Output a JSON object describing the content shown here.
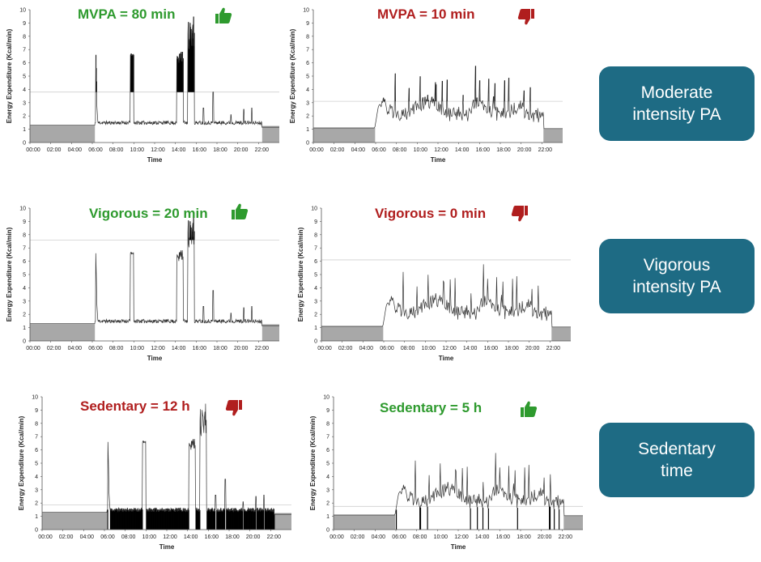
{
  "colors": {
    "green": "#2e9a2e",
    "red": "#b01e1e",
    "box": "#1e6b84",
    "sedentary_fill": "#a8a8a8",
    "highlight": "#000000",
    "line": "#333333",
    "threshold": "#cfcfcf"
  },
  "side_boxes": [
    {
      "line1": "Moderate",
      "line2": "intensity PA"
    },
    {
      "line1": "Vigorous",
      "line2": "intensity PA"
    },
    {
      "line1": "Sedentary",
      "line2": "time"
    }
  ],
  "chart_data": [
    {
      "type": "line",
      "profile": "active",
      "title": "MVPA = 80 min",
      "title_color": "green",
      "icon": "thumbs-up-icon",
      "highlight": "above",
      "threshold": 3.8,
      "xlabel": "Time",
      "ylabel": "Energy Expenditure (Kcal/min)",
      "ylim": [
        0,
        10
      ],
      "yticks": [
        "0",
        "1",
        "2",
        "3",
        "4",
        "5",
        "6",
        "7",
        "8",
        "9",
        "10"
      ],
      "xticks": [
        "00:00",
        "02:00",
        "04:00",
        "06:00",
        "08:00",
        "10:00",
        "12:00",
        "14:00",
        "16:00",
        "18:00",
        "20:00",
        "22:00"
      ]
    },
    {
      "type": "line",
      "profile": "low",
      "title": "MVPA = 10 min",
      "title_color": "red",
      "icon": "thumbs-down-icon",
      "highlight": "above",
      "threshold": 3.1,
      "xlabel": "Time",
      "ylabel": "Energy Expenditure (Kcal/min)",
      "ylim": [
        0,
        10
      ],
      "yticks": [
        "0",
        "1",
        "2",
        "3",
        "4",
        "5",
        "6",
        "7",
        "8",
        "9",
        "10"
      ],
      "xticks": [
        "00:00",
        "02:00",
        "04:00",
        "06:00",
        "08:00",
        "10:00",
        "12:00",
        "14:00",
        "16:00",
        "18:00",
        "20:00",
        "22:00"
      ]
    },
    {
      "type": "line",
      "profile": "active",
      "title": "Vigorous = 20  min",
      "title_color": "green",
      "icon": "thumbs-up-icon",
      "highlight": "above",
      "threshold": 7.6,
      "xlabel": "Time",
      "ylabel": "Energy Expenditure (Kcal/min)",
      "ylim": [
        0,
        10
      ],
      "yticks": [
        "0",
        "1",
        "2",
        "3",
        "4",
        "5",
        "6",
        "7",
        "8",
        "9",
        "10"
      ],
      "xticks": [
        "00:00",
        "02:00",
        "04:00",
        "06:00",
        "08:00",
        "10:00",
        "12:00",
        "14:00",
        "16:00",
        "18:00",
        "20:00",
        "22:00"
      ]
    },
    {
      "type": "line",
      "profile": "low",
      "title": "Vigorous = 0 min",
      "title_color": "red",
      "icon": "thumbs-down-icon",
      "highlight": "above",
      "threshold": 6.1,
      "xlabel": "Time",
      "ylabel": "Energy Expenditure (Kcal/min)",
      "ylim": [
        0,
        10
      ],
      "yticks": [
        "0",
        "1",
        "2",
        "3",
        "4",
        "5",
        "6",
        "7",
        "8",
        "9",
        "10"
      ],
      "xticks": [
        "00:00",
        "02:00",
        "04:00",
        "06:00",
        "08:00",
        "10:00",
        "12:00",
        "14:00",
        "16:00",
        "18:00",
        "20:00",
        "22:00"
      ]
    },
    {
      "type": "line",
      "profile": "active",
      "title": "Sedentary = 12 h",
      "title_color": "red",
      "icon": "thumbs-down-icon",
      "highlight": "below",
      "threshold": 1.85,
      "xlabel": "Time",
      "ylabel": "Energy Expenditure (Kcal/min)",
      "ylim": [
        0,
        10
      ],
      "yticks": [
        "0",
        "1",
        "2",
        "3",
        "4",
        "5",
        "6",
        "7",
        "8",
        "9",
        "10"
      ],
      "xticks": [
        "00:00",
        "02:00",
        "04:00",
        "06:00",
        "08:00",
        "10:00",
        "12:00",
        "14:00",
        "16:00",
        "18:00",
        "20:00",
        "22:00"
      ]
    },
    {
      "type": "line",
      "profile": "low",
      "title": "Sedentary = 5 h",
      "title_color": "green",
      "icon": "thumbs-up-icon",
      "highlight": "below",
      "threshold": 1.75,
      "xlabel": "Time",
      "ylabel": "Energy Expenditure (Kcal/min)",
      "ylim": [
        0,
        10
      ],
      "yticks": [
        "0",
        "1",
        "2",
        "3",
        "4",
        "5",
        "6",
        "7",
        "8",
        "9",
        "10"
      ],
      "xticks": [
        "00:00",
        "02:00",
        "04:00",
        "06:00",
        "08:00",
        "10:00",
        "12:00",
        "14:00",
        "16:00",
        "18:00",
        "20:00",
        "22:00"
      ]
    }
  ]
}
